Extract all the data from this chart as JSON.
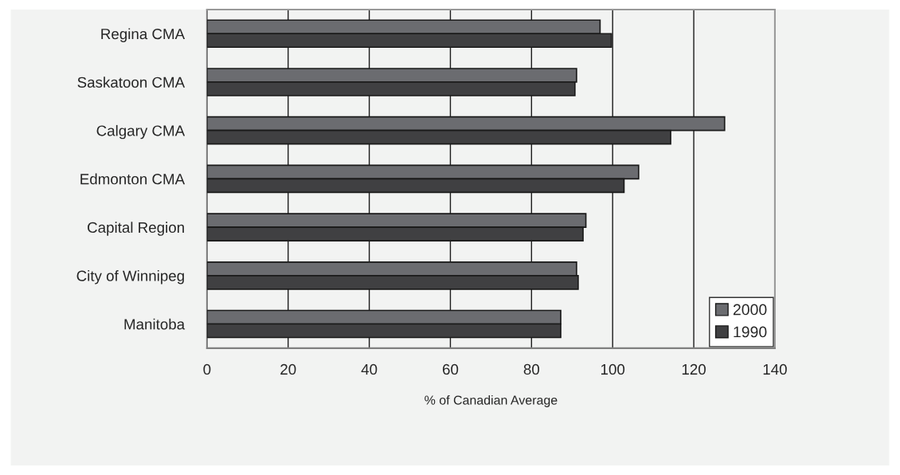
{
  "chart_data": {
    "type": "bar",
    "orientation": "horizontal",
    "xlabel": "% of Canadian Average",
    "categories": [
      "Regina CMA",
      "Saskatoon CMA",
      "Calgary CMA",
      "Edmonton CMA",
      "Capital Region",
      "City of Winnipeg",
      "Manitoba"
    ],
    "series": [
      {
        "name": "2000",
        "color": "#6b6c70",
        "values": [
          96.9,
          91.1,
          127.6,
          106.4,
          93.4,
          91.1,
          87.2
        ]
      },
      {
        "name": "1990",
        "color": "#404042",
        "values": [
          99.7,
          90.7,
          114.3,
          102.8,
          92.7,
          91.5,
          87.2
        ]
      }
    ],
    "xlim": [
      0,
      140
    ],
    "xticks": [
      0,
      20,
      40,
      60,
      80,
      100,
      120,
      140
    ],
    "grid": "x",
    "legend": "bottom right"
  }
}
